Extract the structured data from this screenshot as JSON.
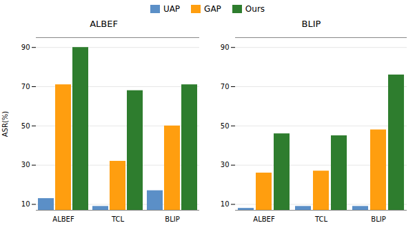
{
  "chart_data": [
    {
      "type": "bar",
      "title": "ALBEF",
      "categories": [
        "ALBEF",
        "TCL",
        "BLIP"
      ],
      "series": [
        {
          "name": "UAP",
          "color": "#5b8fc7",
          "values": [
            13,
            9,
            17
          ]
        },
        {
          "name": "GAP",
          "color": "#ff9e0f",
          "values": [
            71,
            32,
            50
          ]
        },
        {
          "name": "Ours",
          "color": "#2e7d2e",
          "values": [
            90,
            68,
            71
          ]
        }
      ],
      "ylabel": "ASR(%)",
      "ylim": [
        7,
        95
      ],
      "yticks": [
        10,
        30,
        50,
        70,
        90
      ],
      "grid": true,
      "legend": "top"
    },
    {
      "type": "bar",
      "title": "BLIP",
      "categories": [
        "ALBEF",
        "TCL",
        "BLIP"
      ],
      "series": [
        {
          "name": "UAP",
          "color": "#5b8fc7",
          "values": [
            8,
            9,
            9
          ]
        },
        {
          "name": "GAP",
          "color": "#ff9e0f",
          "values": [
            26,
            27,
            48
          ]
        },
        {
          "name": "Ours",
          "color": "#2e7d2e",
          "values": [
            46,
            45,
            76
          ]
        }
      ],
      "ylim": [
        7,
        95
      ],
      "yticks": [
        10,
        30,
        50,
        70,
        90
      ],
      "grid": true
    }
  ]
}
